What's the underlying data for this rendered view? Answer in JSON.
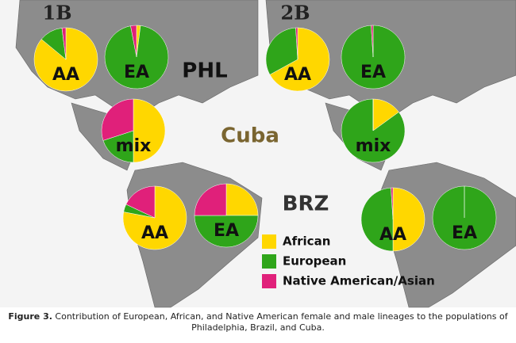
{
  "panels": [
    {
      "title": "1B",
      "pies": [
        {
          "type": "pie",
          "label": "AA",
          "values": [
            86,
            12,
            2
          ]
        },
        {
          "type": "pie",
          "label": "EA",
          "values": [
            2,
            95,
            3
          ]
        },
        {
          "type": "pie",
          "label": "mix",
          "values": [
            50,
            20,
            30
          ]
        },
        {
          "type": "pie",
          "label": "AA",
          "values": [
            78,
            4,
            18
          ]
        },
        {
          "type": "pie",
          "label": "EA",
          "values": [
            25,
            50,
            25
          ]
        }
      ]
    },
    {
      "title": "2B",
      "pies": [
        {
          "type": "pie",
          "label": "AA",
          "values": [
            67,
            32,
            1
          ]
        },
        {
          "type": "pie",
          "label": "EA",
          "values": [
            0,
            99,
            1
          ]
        },
        {
          "type": "pie",
          "label": "mix",
          "values": [
            15,
            85,
            0
          ]
        },
        {
          "type": "pie",
          "label": "AA",
          "values": [
            50,
            49,
            1
          ]
        },
        {
          "type": "pie",
          "label": "EA",
          "values": [
            0,
            100,
            0
          ]
        }
      ]
    }
  ],
  "locations": [
    "PHL",
    "Cuba",
    "BRZ"
  ],
  "legend": {
    "categories": [
      "African",
      "European",
      "Native American/Asian"
    ],
    "colors": [
      "#ffd700",
      "#2fa51a",
      "#e0207a"
    ]
  },
  "caption": {
    "label": "Figure 3.",
    "text": "Contribution of European, African, and Native American female and male lineages to the populations of Philadelphia, Brazil, and Cuba."
  }
}
